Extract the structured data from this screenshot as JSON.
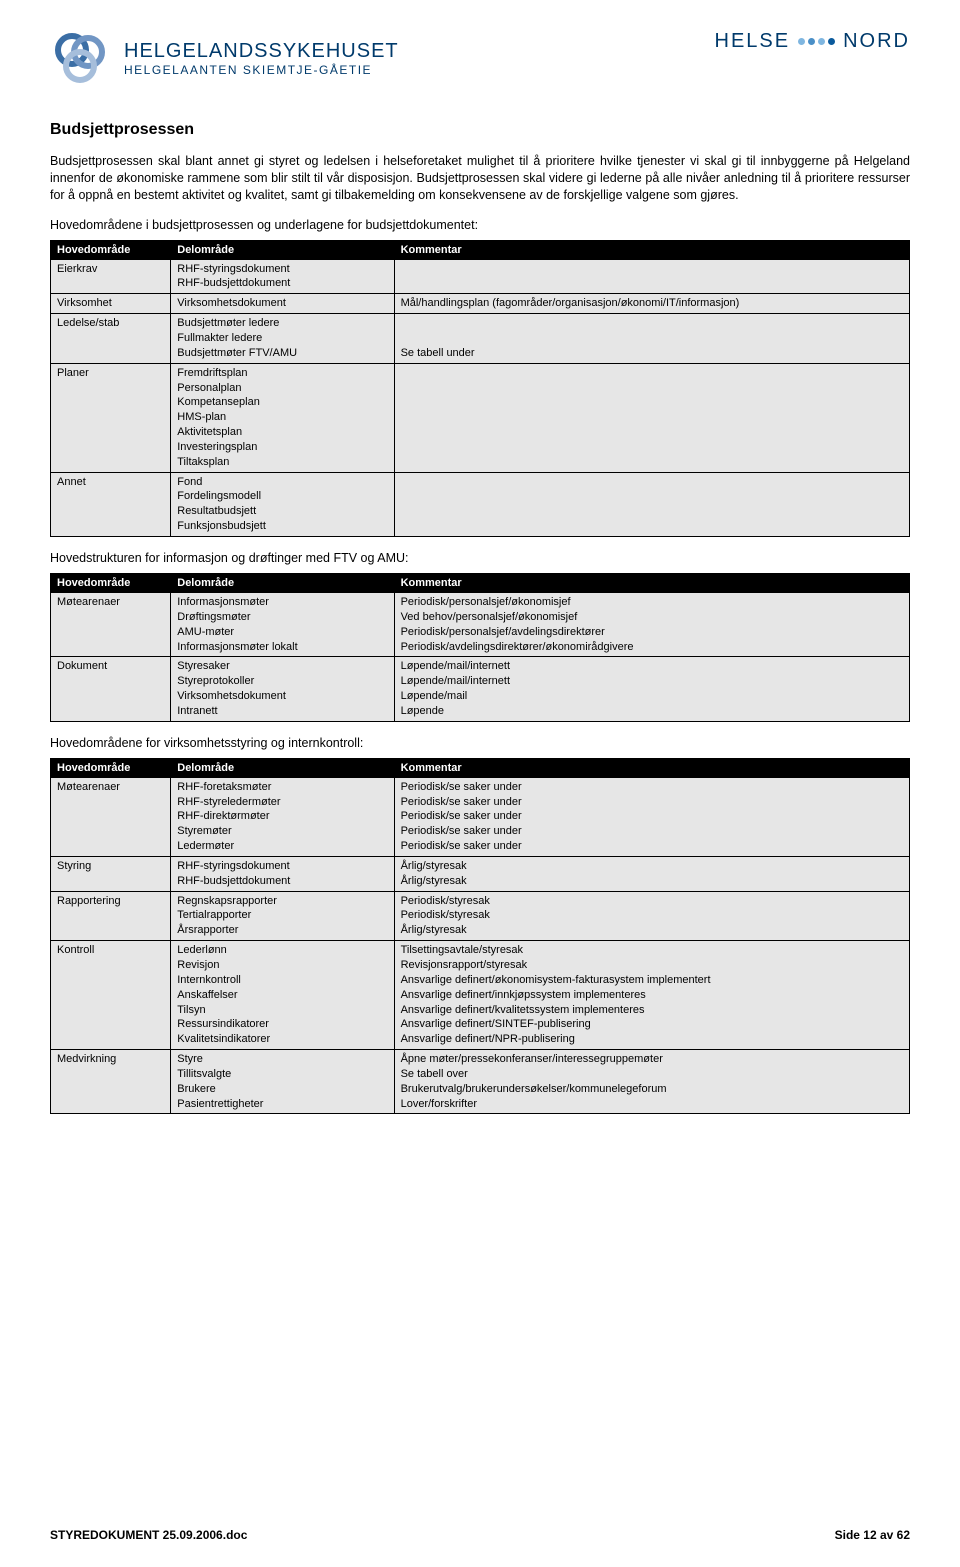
{
  "logo_left": {
    "main": "HELGELANDSSYKEHUSET",
    "sub": "HELGELAANTEN SKIEMTJE-GÅETIE"
  },
  "logo_right": {
    "left": "HELSE",
    "right": "NORD"
  },
  "title": "Budsjettprosessen",
  "para1": "Budsjettprosessen skal blant annet gi styret og ledelsen i helseforetaket mulighet til å prioritere hvilke tjenester vi skal gi til innbyggerne på Helgeland innenfor de økonomiske rammene som blir stilt til vår disposisjon. Budsjettprosessen skal videre gi lederne på alle nivåer anledning til å prioritere ressurser for å oppnå en bestemt aktivitet og kvalitet, samt gi tilbakemelding om konsekvensene av de forskjellige valgene som gjøres.",
  "sub1": "Hovedområdene i budsjettprosessen og underlagene for budsjettdokumentet:",
  "sub2": "Hovedstrukturen for informasjon og drøftinger med FTV og AMU:",
  "sub3": "Hovedområdene for virksomhetsstyring og internkontroll:",
  "table_header": {
    "c1": "Hovedområde",
    "c2": "Delområde",
    "c3": "Kommentar"
  },
  "table1_rows": [
    {
      "c1": "Eierkrav",
      "c2": "RHF-styringsdokument\nRHF-budsjettdokument",
      "c3": ""
    },
    {
      "c1": "Virksomhet",
      "c2": "Virksomhetsdokument",
      "c3": "Mål/handlingsplan (fagområder/organisasjon/økonomi/IT/informasjon)"
    },
    {
      "c1": "Ledelse/stab",
      "c2": "Budsjettmøter ledere\nFullmakter ledere\nBudsjettmøter FTV/AMU",
      "c3": "\n\nSe tabell under"
    },
    {
      "c1": "Planer",
      "c2": "Fremdriftsplan\nPersonalplan\nKompetanseplan\nHMS-plan\nAktivitetsplan\nInvesteringsplan\nTiltaksplan",
      "c3": ""
    },
    {
      "c1": "Annet",
      "c2": "Fond\nFordelingsmodell\nResultatbudsjett\nFunksjonsbudsjett",
      "c3": ""
    }
  ],
  "table2_rows": [
    {
      "c1": "Møtearenaer",
      "c2": "Informasjonsmøter\nDrøftingsmøter\nAMU-møter\nInformasjonsmøter lokalt",
      "c3": "Periodisk/personalsjef/økonomisjef\nVed behov/personalsjef/økonomisjef\nPeriodisk/personalsjef/avdelingsdirektører\nPeriodisk/avdelingsdirektører/økonomirådgivere"
    },
    {
      "c1": "Dokument",
      "c2": "Styresaker\nStyreprotokoller\nVirksomhetsdokument\nIntranett",
      "c3": "Løpende/mail/internett\nLøpende/mail/internett\nLøpende/mail\nLøpende"
    }
  ],
  "table3_rows": [
    {
      "c1": "Møtearenaer",
      "c2": "RHF-foretaksmøter\nRHF-styreledermøter\nRHF-direktørmøter\nStyremøter\nLedermøter",
      "c3": "Periodisk/se saker under\nPeriodisk/se saker under\nPeriodisk/se saker under\nPeriodisk/se saker under\nPeriodisk/se saker under"
    },
    {
      "c1": "Styring",
      "c2": "RHF-styringsdokument\nRHF-budsjettdokument",
      "c3": "Årlig/styresak\nÅrlig/styresak"
    },
    {
      "c1": "Rapportering",
      "c2": "Regnskapsrapporter\nTertialrapporter\nÅrsrapporter",
      "c3": "Periodisk/styresak\nPeriodisk/styresak\nÅrlig/styresak"
    },
    {
      "c1": "Kontroll",
      "c2": "Lederlønn\nRevisjon\nInternkontroll\nAnskaffelser\nTilsyn\nRessursindikatorer\nKvalitetsindikatorer",
      "c3": "Tilsettingsavtale/styresak\nRevisjonsrapport/styresak\nAnsvarlige definert/økonomisystem-fakturasystem implementert\nAnsvarlige definert/innkjøpssystem implementeres\nAnsvarlige definert/kvalitetssystem implementeres\nAnsvarlige definert/SINTEF-publisering\nAnsvarlige definert/NPR-publisering"
    },
    {
      "c1": "Medvirkning",
      "c2": "Styre\nTillitsvalgte\nBrukere\nPasientrettigheter",
      "c3": "Åpne møter/pressekonferanser/interessegruppemøter\nSe tabell over\nBrukerutvalg/brukerundersøkelser/kommunelegeforum\nLover/forskrifter"
    }
  ],
  "footer": {
    "left": "STYREDOKUMENT 25.09.2006.doc",
    "right": "Side 12 av 62"
  },
  "colors": {
    "brand": "#003a6b",
    "dot_light": "#7fb6e0",
    "dot_mid": "#4a8fc7",
    "dot_dark": "#0a5a9c",
    "ring1": "#3b6ea5",
    "ring2": "#7196c4",
    "ring3": "#a6bedb"
  }
}
